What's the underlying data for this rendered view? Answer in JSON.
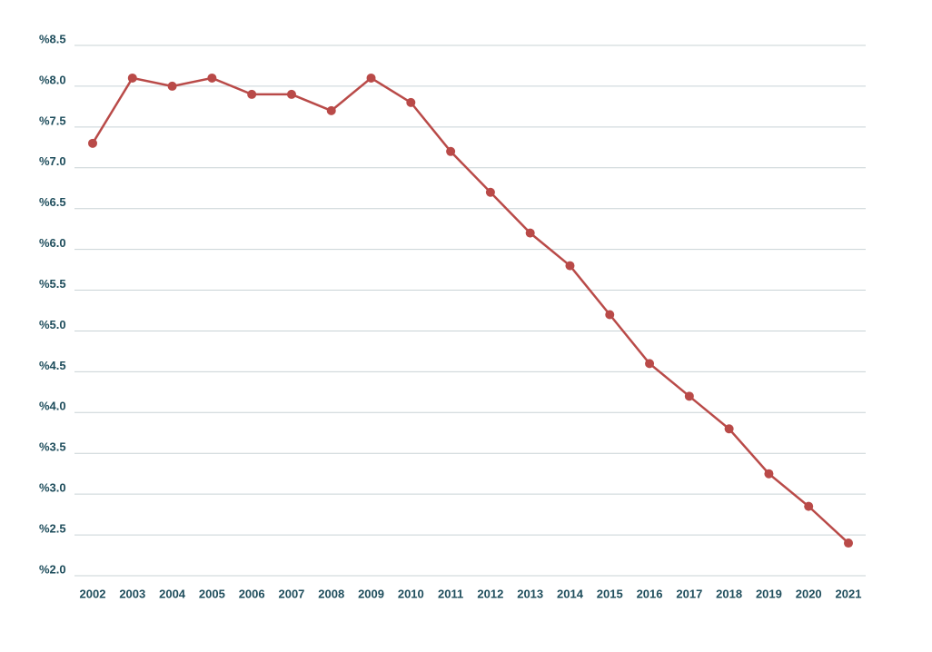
{
  "chart_data": {
    "type": "line",
    "categories": [
      "2002",
      "2003",
      "2004",
      "2005",
      "2006",
      "2007",
      "2008",
      "2009",
      "2010",
      "2011",
      "2012",
      "2013",
      "2014",
      "2015",
      "2016",
      "2017",
      "2018",
      "2019",
      "2020",
      "2021"
    ],
    "series": [
      {
        "color": "#b94a48",
        "values": [
          7.3,
          8.1,
          8.0,
          8.1,
          7.9,
          7.9,
          7.7,
          8.1,
          7.8,
          7.2,
          6.7,
          6.2,
          5.8,
          5.2,
          4.6,
          4.2,
          3.8,
          3.25,
          2.85,
          2.4
        ]
      }
    ],
    "ylim": [
      2.0,
      8.5
    ],
    "yticks": [
      {
        "value": 2.0,
        "label": "%2.0"
      },
      {
        "value": 2.5,
        "label": "%2.5"
      },
      {
        "value": 3.0,
        "label": "%3.0"
      },
      {
        "value": 3.5,
        "label": "%3.5"
      },
      {
        "value": 4.0,
        "label": "%4.0"
      },
      {
        "value": 4.5,
        "label": "%4.5"
      },
      {
        "value": 5.0,
        "label": "%5.0"
      },
      {
        "value": 5.5,
        "label": "%5.5"
      },
      {
        "value": 6.0,
        "label": "%6.0"
      },
      {
        "value": 6.5,
        "label": "%6.5"
      },
      {
        "value": 7.0,
        "label": "%7.0"
      },
      {
        "value": 7.5,
        "label": "%7.5"
      },
      {
        "value": 8.0,
        "label": "%8.0"
      },
      {
        "value": 8.5,
        "label": "%8.5"
      }
    ],
    "grid": true
  }
}
